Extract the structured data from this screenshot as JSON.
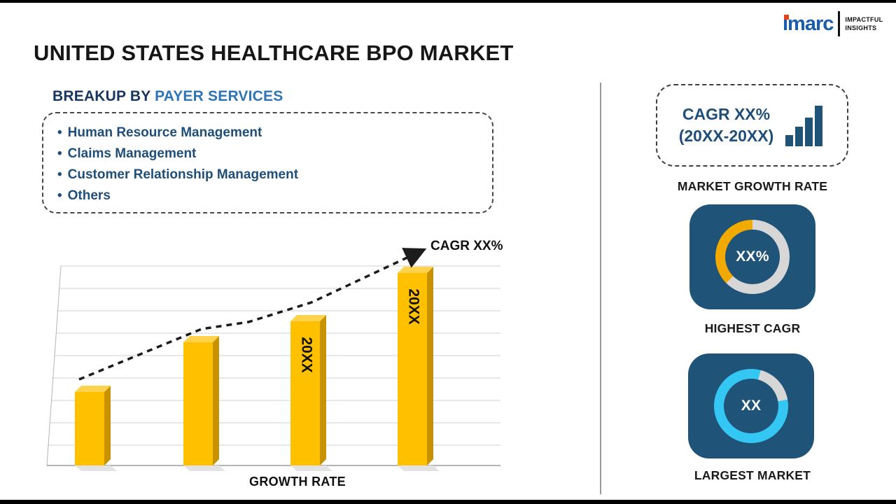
{
  "logo": {
    "brand": "imarc",
    "tagline_line1": "IMPACTFUL",
    "tagline_line2": "INSIGHTS"
  },
  "title": "UNITED STATES HEALTHCARE BPO MARKET",
  "breakup": {
    "heading_prefix": "BREAKUP BY ",
    "heading_highlight": "PAYER SERVICES",
    "items": [
      "Human Resource Management",
      "Claims Management",
      "Customer Relationship Management",
      "Others"
    ]
  },
  "chart_data": {
    "type": "bar",
    "categories": [
      "",
      "",
      "20XX",
      "20XX"
    ],
    "values": [
      38,
      64,
      75,
      100
    ],
    "ylim": [
      0,
      100
    ],
    "title": "",
    "xlabel": "GROWTH RATE",
    "ylabel": "",
    "grid": "horizontal",
    "legend": "none",
    "bar_color": "#FFC000",
    "trend_line": {
      "style": "dashed-arrow",
      "label": "CAGR XX%"
    }
  },
  "sidebar": {
    "growth_box": {
      "line1": "CAGR XX%",
      "line2": "(20XX-20XX)"
    },
    "market_growth_label": "MARKET GROWTH RATE",
    "highest_cagr": {
      "value": "XX%",
      "label": "HIGHEST CAGR"
    },
    "largest_market": {
      "value": "XX",
      "label": "LARGEST MARKET"
    }
  },
  "colors": {
    "navy": "#1F5377",
    "gold": "#FFC000",
    "gold_dark": "#C79100",
    "gold_light": "#FFD24D",
    "donut_gold": "#F2A900",
    "donut_gray": "#D7D7D7",
    "cyan": "#35C7F3",
    "text_navy": "#1F4E79",
    "heading_blue": "#2E75B6",
    "logo_blue": "#1A5DAF",
    "logo_red": "#E8401C"
  }
}
